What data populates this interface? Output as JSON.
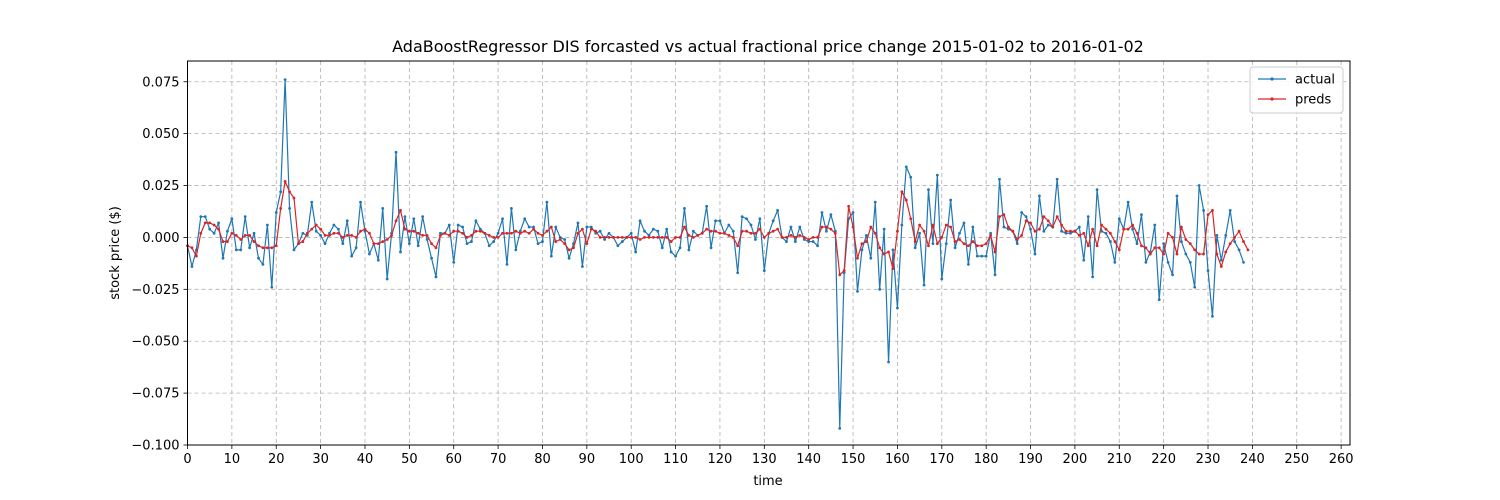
{
  "chart_data": {
    "type": "line",
    "title": "AdaBoostRegressor DIS forcasted vs actual fractional price change 2015-01-02 to 2016-01-02",
    "xlabel": "time",
    "ylabel": "stock price ($)",
    "xlim": [
      0,
      262
    ],
    "ylim": [
      -0.1,
      0.085
    ],
    "xticks": [
      0,
      10,
      20,
      30,
      40,
      50,
      60,
      70,
      80,
      90,
      100,
      110,
      120,
      130,
      140,
      150,
      160,
      170,
      180,
      190,
      200,
      210,
      220,
      230,
      240,
      250,
      260
    ],
    "yticks": [
      {
        "value": -0.1,
        "label": "−0.100"
      },
      {
        "value": -0.075,
        "label": "−0.075"
      },
      {
        "value": -0.05,
        "label": "−0.050"
      },
      {
        "value": -0.025,
        "label": "−0.025"
      },
      {
        "value": 0.0,
        "label": "0.000"
      },
      {
        "value": 0.025,
        "label": "0.025"
      },
      {
        "value": 0.05,
        "label": "0.050"
      },
      {
        "value": 0.075,
        "label": "0.075"
      }
    ],
    "grid": true,
    "legend_position": "top-right",
    "series": [
      {
        "name": "actual",
        "color": "#1f77b4",
        "values": [
          -0.004,
          -0.014,
          -0.006,
          0.01,
          0.01,
          0.004,
          0.002,
          0.007,
          -0.01,
          0.003,
          0.009,
          -0.006,
          -0.006,
          0.01,
          -0.005,
          0.002,
          -0.01,
          -0.013,
          0.006,
          -0.024,
          0.012,
          0.022,
          0.076,
          0.014,
          -0.006,
          -0.003,
          0.002,
          0.001,
          0.017,
          0.003,
          0.001,
          -0.003,
          0.002,
          0.006,
          0.004,
          -0.003,
          0.008,
          -0.009,
          -0.005,
          0.017,
          0.003,
          -0.008,
          -0.003,
          -0.011,
          0.014,
          -0.02,
          0.002,
          0.041,
          -0.007,
          0.01,
          -0.003,
          0.009,
          -0.004,
          0.01,
          -0.001,
          -0.01,
          -0.019,
          0.002,
          0.002,
          0.006,
          -0.012,
          0.006,
          0.005,
          -0.003,
          -0.002,
          0.008,
          0.004,
          0.002,
          -0.004,
          -0.002,
          0.002,
          0.009,
          -0.013,
          0.014,
          -0.006,
          0.003,
          0.009,
          0.005,
          0.005,
          -0.003,
          -0.002,
          0.017,
          -0.009,
          0.005,
          0.0,
          -0.001,
          -0.01,
          -0.003,
          0.007,
          -0.014,
          0.005,
          0.005,
          0.002,
          0.003,
          -0.001,
          0.002,
          0.0,
          -0.004,
          -0.002,
          0.0,
          0.002,
          -0.007,
          0.008,
          0.003,
          0.001,
          0.004,
          0.003,
          -0.005,
          0.004,
          -0.007,
          -0.009,
          -0.005,
          0.014,
          -0.006,
          0.003,
          0.001,
          0.002,
          0.015,
          -0.005,
          0.008,
          0.008,
          0.002,
          0.006,
          0.003,
          -0.017,
          0.01,
          0.009,
          0.006,
          -0.001,
          0.009,
          -0.016,
          0.002,
          0.008,
          0.013,
          0.0,
          -0.002,
          0.005,
          -0.002,
          0.005,
          -0.001,
          -0.002,
          -0.002,
          -0.004,
          0.012,
          0.003,
          0.011,
          0.003,
          -0.092,
          -0.017,
          0.009,
          0.012,
          -0.026,
          -0.006,
          0.001,
          -0.01,
          0.017,
          -0.025,
          0.004,
          -0.06,
          -0.006,
          -0.034,
          0.006,
          0.034,
          0.029,
          -0.005,
          0.002,
          -0.023,
          0.023,
          -0.003,
          0.03,
          -0.02,
          -0.003,
          0.018,
          -0.005,
          0.002,
          0.007,
          -0.013,
          0.005,
          -0.009,
          -0.009,
          -0.009,
          0.002,
          -0.018,
          0.028,
          0.005,
          0.004,
          0.003,
          -0.003,
          0.012,
          0.01,
          0.004,
          -0.008,
          0.02,
          0.003,
          0.006,
          0.005,
          0.028,
          0.003,
          0.002,
          0.002,
          0.003,
          0.005,
          -0.011,
          0.01,
          -0.019,
          0.023,
          0.003,
          0.002,
          -0.002,
          -0.012,
          0.009,
          0.004,
          0.017,
          0.004,
          -0.003,
          0.011,
          -0.012,
          -0.007,
          0.006,
          -0.03,
          -0.003,
          -0.012,
          -0.018,
          0.02,
          -0.002,
          -0.008,
          -0.012,
          -0.024,
          0.025,
          0.013,
          -0.016,
          -0.038,
          0.001,
          -0.011,
          0.001,
          0.013,
          -0.002,
          -0.006,
          -0.012
        ]
      },
      {
        "name": "preds",
        "color": "#d62728",
        "values": [
          -0.004,
          -0.005,
          -0.009,
          0.002,
          0.007,
          0.007,
          0.006,
          0.004,
          -0.002,
          -0.002,
          0.002,
          0.001,
          -0.001,
          0.001,
          0.001,
          -0.002,
          -0.004,
          -0.005,
          -0.005,
          -0.005,
          -0.004,
          0.014,
          0.027,
          0.022,
          0.019,
          -0.003,
          -0.002,
          0.002,
          0.004,
          0.006,
          0.004,
          0.001,
          0.001,
          0.002,
          0.002,
          0.0,
          0.001,
          0.001,
          0.0,
          0.003,
          0.004,
          0.002,
          -0.003,
          -0.003,
          -0.002,
          -0.001,
          0.001,
          0.008,
          0.013,
          0.004,
          0.003,
          0.003,
          0.002,
          0.001,
          0.001,
          -0.003,
          -0.005,
          0.001,
          0.002,
          0.001,
          0.003,
          0.003,
          0.002,
          0.0,
          0.001,
          0.003,
          0.003,
          0.002,
          0.001,
          0.0,
          0.0,
          0.002,
          0.002,
          0.002,
          0.003,
          0.002,
          0.003,
          0.002,
          0.004,
          0.002,
          0.001,
          0.003,
          0.005,
          -0.002,
          -0.001,
          -0.003,
          -0.006,
          -0.005,
          0.002,
          0.004,
          -0.003,
          0.004,
          0.003,
          0.0,
          0.0,
          0.0,
          0.0,
          0.0,
          0.0,
          0.0,
          0.0,
          0.0,
          -0.001,
          0.0,
          0.0,
          0.0,
          0.0,
          0.0,
          0.0,
          -0.002,
          0.0,
          0.0,
          0.005,
          0.001,
          0.0,
          0.001,
          0.002,
          0.004,
          0.003,
          0.003,
          0.002,
          0.002,
          0.001,
          0.0,
          -0.004,
          0.003,
          0.003,
          0.002,
          0.002,
          0.004,
          0.0,
          0.002,
          0.003,
          0.004,
          0.0,
          0.0,
          0.001,
          0.0,
          0.001,
          0.0,
          -0.001,
          0.0,
          0.0,
          0.005,
          0.005,
          0.004,
          0.002,
          -0.018,
          -0.016,
          0.015,
          0.005,
          -0.01,
          -0.003,
          -0.002,
          0.005,
          0.002,
          -0.005,
          -0.008,
          -0.007,
          -0.015,
          0.003,
          0.022,
          0.018,
          0.009,
          -0.002,
          0.006,
          0.003,
          -0.004,
          0.006,
          -0.003,
          0.0,
          0.006,
          0.005,
          -0.002,
          -0.001,
          -0.003,
          -0.004,
          -0.002,
          -0.004,
          -0.004,
          -0.003,
          0.001,
          -0.007,
          0.01,
          0.011,
          0.005,
          0.003,
          -0.001,
          0.001,
          0.008,
          0.007,
          0.003,
          0.004,
          0.01,
          0.008,
          0.005,
          0.01,
          0.006,
          0.003,
          0.003,
          0.003,
          0.001,
          0.002,
          -0.004,
          0.004,
          -0.004,
          0.006,
          0.004,
          0.002,
          -0.002,
          -0.006,
          0.004,
          0.004,
          0.006,
          0.002,
          -0.004,
          -0.005,
          -0.008,
          -0.005,
          -0.005,
          -0.008,
          0.002,
          0.0,
          -0.008,
          0.005,
          -0.001,
          -0.003,
          -0.006,
          -0.008,
          -0.008,
          0.011,
          0.013,
          -0.008,
          -0.014,
          -0.007,
          -0.003,
          0.0,
          0.003,
          -0.002,
          -0.006
        ]
      }
    ]
  }
}
